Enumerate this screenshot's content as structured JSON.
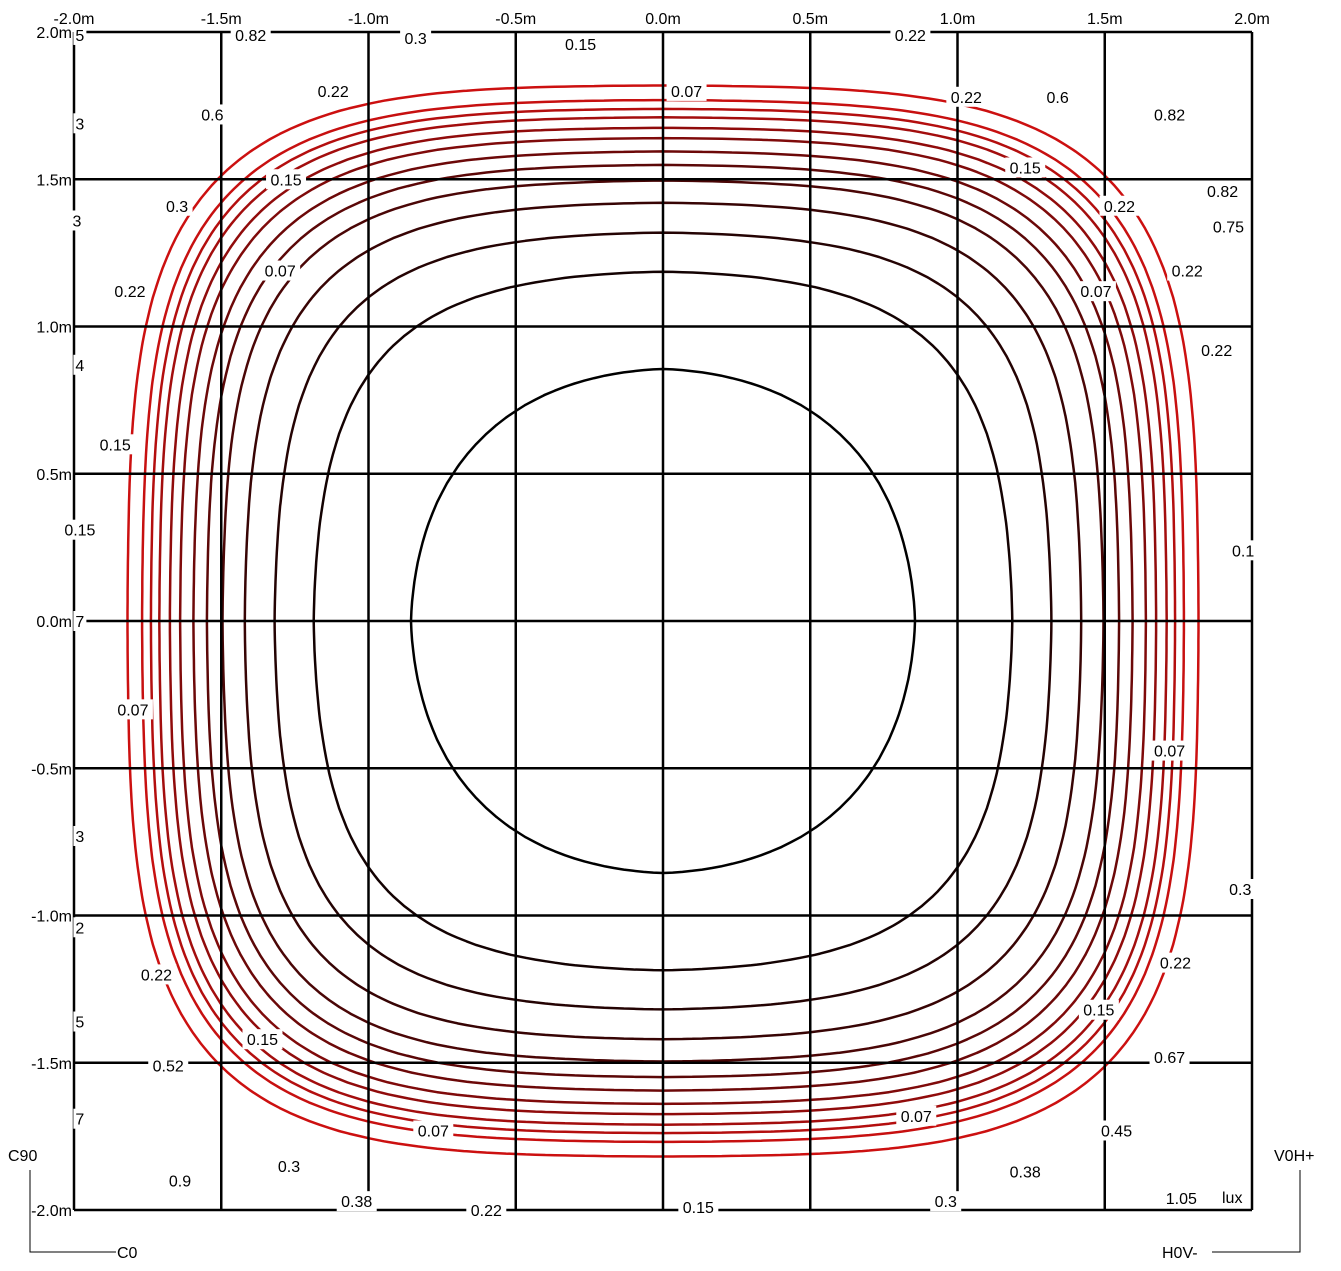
{
  "chart_data": {
    "type": "contour",
    "unit": "lux",
    "x_ticks": [
      "-2.0m",
      "-1.5m",
      "-1.0m",
      "-0.5m",
      "0.0m",
      "0.5m",
      "1.0m",
      "1.5m",
      "2.0m"
    ],
    "y_ticks": [
      "2.0m",
      "1.5m",
      "1.0m",
      "0.5m",
      "0.0m",
      "-0.5m",
      "-1.0m",
      "-1.5m",
      "-2.0m"
    ],
    "xlim": [
      -2.0,
      2.0
    ],
    "ylim": [
      -2.0,
      2.0
    ],
    "grid": true,
    "corner_labels": {
      "left_axis": "C90",
      "bottom_axis": "C0",
      "right_axis": "V0H+",
      "bottom_right": "H0V-"
    },
    "contour_levels": [
      0.07,
      0.15,
      0.22,
      0.3,
      0.38,
      0.45,
      0.52,
      0.6,
      0.67,
      0.75,
      0.82,
      0.9,
      1.05
    ],
    "colors": {
      "low": "#000000",
      "high": "#cc1010"
    },
    "contour_labels": [
      {
        "text": "0.07",
        "x": 0.08,
        "y": 1.8
      },
      {
        "text": "0.15",
        "x": -0.28,
        "y": 1.96
      },
      {
        "text": "0.82",
        "x": -1.4,
        "y": 1.99
      },
      {
        "text": "0.3",
        "x": -0.84,
        "y": 1.98
      },
      {
        "text": "0.22",
        "x": 0.84,
        "y": 1.99
      },
      {
        "text": "0.6",
        "x": -1.53,
        "y": 1.72
      },
      {
        "text": "0.22",
        "x": -1.12,
        "y": 1.8
      },
      {
        "text": "0.22",
        "x": 1.03,
        "y": 1.78
      },
      {
        "text": "0.6",
        "x": 1.34,
        "y": 1.78
      },
      {
        "text": "0.82",
        "x": 1.72,
        "y": 1.72
      },
      {
        "text": "0.15",
        "x": -1.28,
        "y": 1.5
      },
      {
        "text": "0.3",
        "x": -1.65,
        "y": 1.41
      },
      {
        "text": "0.07",
        "x": -1.3,
        "y": 1.19
      },
      {
        "text": "0.22",
        "x": -1.81,
        "y": 1.12
      },
      {
        "text": "0.15",
        "x": 1.23,
        "y": 1.54
      },
      {
        "text": "0.22",
        "x": 1.55,
        "y": 1.41
      },
      {
        "text": "0.82",
        "x": 1.9,
        "y": 1.46
      },
      {
        "text": "0.75",
        "x": 1.92,
        "y": 1.34
      },
      {
        "text": "0.22",
        "x": 1.78,
        "y": 1.19
      },
      {
        "text": "0.07",
        "x": 1.47,
        "y": 1.12
      },
      {
        "text": "0.22",
        "x": 1.88,
        "y": 0.92
      },
      {
        "text": "0.15",
        "x": -1.86,
        "y": 0.6
      },
      {
        "text": "0.15",
        "x": -1.98,
        "y": 0.31
      },
      {
        "text": "0.1",
        "x": 1.97,
        "y": 0.24
      },
      {
        "text": "0.07",
        "x": -1.8,
        "y": -0.3
      },
      {
        "text": "0.07",
        "x": 1.72,
        "y": -0.44
      },
      {
        "text": "0.3",
        "x": 1.96,
        "y": -0.91
      },
      {
        "text": "0.22",
        "x": -1.72,
        "y": -1.2
      },
      {
        "text": "0.22",
        "x": 1.74,
        "y": -1.16
      },
      {
        "text": "0.15",
        "x": -1.36,
        "y": -1.42
      },
      {
        "text": "0.15",
        "x": 1.48,
        "y": -1.32
      },
      {
        "text": "0.52",
        "x": -1.68,
        "y": -1.51
      },
      {
        "text": "0.67",
        "x": 1.72,
        "y": -1.48
      },
      {
        "text": "0.07",
        "x": -0.78,
        "y": -1.73
      },
      {
        "text": "0.07",
        "x": 0.86,
        "y": -1.68
      },
      {
        "text": "0.45",
        "x": 1.54,
        "y": -1.73
      },
      {
        "text": "0.3",
        "x": -1.27,
        "y": -1.85
      },
      {
        "text": "0.38",
        "x": 1.23,
        "y": -1.87
      },
      {
        "text": "0.9",
        "x": -1.64,
        "y": -1.9
      },
      {
        "text": "0.38",
        "x": -1.04,
        "y": -1.97
      },
      {
        "text": "0.3",
        "x": 0.96,
        "y": -1.97
      },
      {
        "text": "0.15",
        "x": 0.12,
        "y": -1.99
      },
      {
        "text": "0.22",
        "x": -0.6,
        "y": -2.0
      },
      {
        "text": "1.05",
        "x": 1.76,
        "y": -1.96
      },
      {
        "text": "3",
        "x": -1.98,
        "y": 1.69
      },
      {
        "text": "3",
        "x": -1.99,
        "y": 1.36
      },
      {
        "text": "4",
        "x": -1.98,
        "y": 0.87
      },
      {
        "text": "3",
        "x": -1.98,
        "y": -0.73
      },
      {
        "text": "2",
        "x": -1.98,
        "y": -1.04
      },
      {
        "text": "5",
        "x": -1.98,
        "y": -1.36
      },
      {
        "text": "7",
        "x": -1.98,
        "y": -1.69
      },
      {
        "text": "5",
        "x": -1.98,
        "y": 1.99
      },
      {
        "text": "7",
        "x": -1.98,
        "y": 0.0
      }
    ]
  }
}
